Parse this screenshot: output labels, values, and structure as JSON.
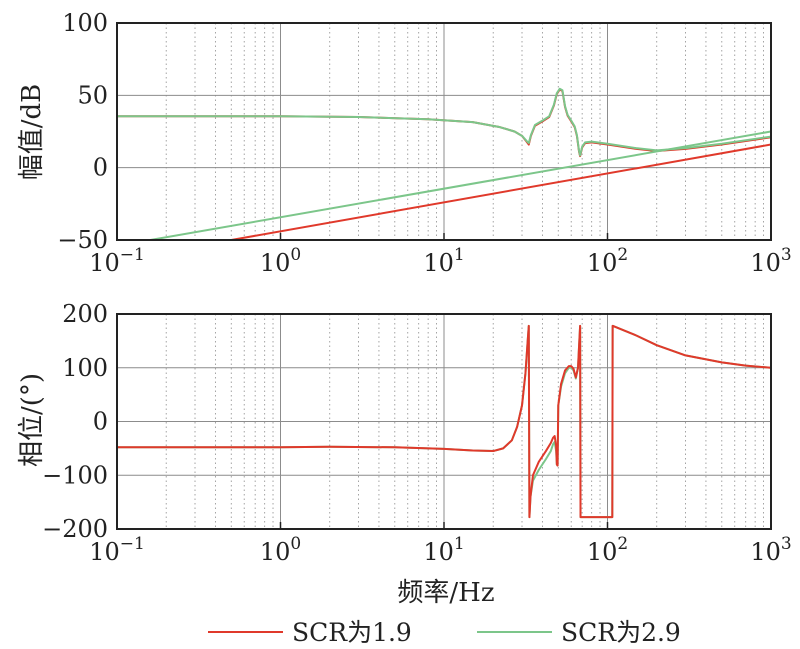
{
  "chart_data": [
    {
      "type": "line",
      "xscale": "log",
      "xlim": [
        0.1,
        1000
      ],
      "ylim": [
        -50,
        100
      ],
      "ylabel": "幅值/dB",
      "xticks": [
        {
          "value": 0.1,
          "base": "10",
          "exp": "−1"
        },
        {
          "value": 1,
          "base": "10",
          "exp": "0"
        },
        {
          "value": 10,
          "base": "10",
          "exp": "1"
        },
        {
          "value": 100,
          "base": "10",
          "exp": "2"
        },
        {
          "value": 1000,
          "base": "10",
          "exp": "3"
        }
      ],
      "yticks": [
        {
          "value": 100,
          "label": "100"
        },
        {
          "value": 50,
          "label": "50"
        },
        {
          "value": 0,
          "label": "0"
        },
        {
          "value": -50,
          "label": "−50"
        }
      ],
      "grid": true,
      "series": [
        {
          "name": "SCR为1.9",
          "color": "#e0392b",
          "points": [
            [
              0.1,
              35.5
            ],
            [
              1,
              35.5
            ],
            [
              3,
              35
            ],
            [
              8,
              33.5
            ],
            [
              15,
              31.5
            ],
            [
              22,
              28
            ],
            [
              27,
              25
            ],
            [
              30,
              22
            ],
            [
              32,
              18
            ],
            [
              33,
              16
            ],
            [
              34,
              22
            ],
            [
              36,
              29
            ],
            [
              40,
              32
            ],
            [
              44,
              35
            ],
            [
              47,
              43
            ],
            [
              49,
              51
            ],
            [
              51,
              54
            ],
            [
              53,
              53
            ],
            [
              55,
              42
            ],
            [
              57,
              36
            ],
            [
              60,
              32
            ],
            [
              63,
              28
            ],
            [
              65,
              22
            ],
            [
              67,
              11
            ],
            [
              68,
              8
            ],
            [
              70,
              14
            ],
            [
              73,
              17
            ],
            [
              80,
              17.5
            ],
            [
              100,
              16
            ],
            [
              150,
              13
            ],
            [
              200,
              11.5
            ],
            [
              300,
              13
            ],
            [
              500,
              16
            ],
            [
              1000,
              21
            ]
          ]
        },
        {
          "name": "SCR为2.9",
          "color": "#7cc68a",
          "points": [
            [
              0.1,
              35.5
            ],
            [
              1,
              35.5
            ],
            [
              3,
              35
            ],
            [
              8,
              33.5
            ],
            [
              15,
              31.5
            ],
            [
              22,
              28
            ],
            [
              27,
              25
            ],
            [
              30,
              22
            ],
            [
              32,
              18.5
            ],
            [
              33,
              17
            ],
            [
              34,
              22.5
            ],
            [
              36,
              29.5
            ],
            [
              40,
              32.5
            ],
            [
              44,
              35.5
            ],
            [
              47,
              43.5
            ],
            [
              49,
              51.5
            ],
            [
              51,
              54.5
            ],
            [
              53,
              53.5
            ],
            [
              55,
              42.5
            ],
            [
              57,
              36.5
            ],
            [
              60,
              32.5
            ],
            [
              63,
              28.5
            ],
            [
              65,
              22.5
            ],
            [
              67,
              11.5
            ],
            [
              68,
              8.5
            ],
            [
              70,
              14.5
            ],
            [
              73,
              17.5
            ],
            [
              80,
              18
            ],
            [
              100,
              16.5
            ],
            [
              150,
              13.5
            ],
            [
              200,
              12
            ],
            [
              300,
              13.5
            ],
            [
              500,
              16.5
            ],
            [
              1000,
              21.5
            ]
          ]
        },
        {
          "name": "",
          "color": "#e0392b",
          "points": [
            [
              0.5,
              -50
            ],
            [
              1000,
              16
            ]
          ]
        },
        {
          "name": "",
          "color": "#7cc68a",
          "points": [
            [
              0.16,
              -50
            ],
            [
              1000,
              25
            ]
          ]
        }
      ]
    },
    {
      "type": "line",
      "xscale": "log",
      "xlim": [
        0.1,
        1000
      ],
      "ylim": [
        -200,
        200
      ],
      "xlabel": "频率/Hz",
      "ylabel": "相位/(°)",
      "xticks": [
        {
          "value": 0.1,
          "base": "10",
          "exp": "−1"
        },
        {
          "value": 1,
          "base": "10",
          "exp": "0"
        },
        {
          "value": 10,
          "base": "10",
          "exp": "1"
        },
        {
          "value": 100,
          "base": "10",
          "exp": "2"
        },
        {
          "value": 1000,
          "base": "10",
          "exp": "3"
        }
      ],
      "yticks": [
        {
          "value": 200,
          "label": "200"
        },
        {
          "value": 100,
          "label": "100"
        },
        {
          "value": 0,
          "label": "0"
        },
        {
          "value": -100,
          "label": "−100"
        },
        {
          "value": -200,
          "label": "−200"
        }
      ],
      "grid": true,
      "series": [
        {
          "name": "SCR为2.9",
          "color": "#7cc68a",
          "points": [
            [
              0.1,
              -48
            ],
            [
              1,
              -48
            ],
            [
              2,
              -47
            ],
            [
              5,
              -48
            ],
            [
              10,
              -51
            ],
            [
              15,
              -54
            ],
            [
              20,
              -55
            ],
            [
              23,
              -50
            ],
            [
              26,
              -35
            ],
            [
              28,
              -10
            ],
            [
              30,
              30
            ],
            [
              31.5,
              90
            ],
            [
              32.5,
              150
            ],
            [
              33,
              178
            ],
            [
              33.3,
              -178
            ],
            [
              33.8,
              -140
            ],
            [
              35,
              -110
            ],
            [
              38,
              -90
            ],
            [
              42,
              -70
            ],
            [
              45,
              -55
            ],
            [
              46.5,
              -42
            ],
            [
              47.5,
              -38
            ],
            [
              48.5,
              -55
            ],
            [
              49,
              -80
            ],
            [
              49.5,
              -82
            ],
            [
              50,
              30
            ],
            [
              52,
              65
            ],
            [
              55,
              90
            ],
            [
              58,
              100
            ],
            [
              60,
              100
            ],
            [
              62,
              95
            ],
            [
              64,
              80
            ],
            [
              66,
              100
            ],
            [
              67,
              140
            ],
            [
              68,
              178
            ],
            [
              68.4,
              -178
            ],
            [
              80,
              -178
            ],
            [
              100,
              -178
            ],
            [
              107,
              -178
            ],
            [
              107.5,
              178
            ],
            [
              150,
              160
            ],
            [
              200,
              142
            ],
            [
              300,
              123
            ],
            [
              500,
              110
            ],
            [
              700,
              104
            ],
            [
              1000,
              100
            ]
          ]
        },
        {
          "name": "SCR为1.9",
          "color": "#e0392b",
          "points": [
            [
              0.1,
              -48
            ],
            [
              1,
              -48
            ],
            [
              2,
              -47
            ],
            [
              5,
              -48
            ],
            [
              10,
              -51
            ],
            [
              15,
              -54
            ],
            [
              20,
              -55
            ],
            [
              23,
              -50
            ],
            [
              26,
              -35
            ],
            [
              28,
              -10
            ],
            [
              30,
              30
            ],
            [
              31.5,
              90
            ],
            [
              32.5,
              150
            ],
            [
              33,
              178
            ],
            [
              33.3,
              -178
            ],
            [
              33.8,
              -140
            ],
            [
              35,
              -100
            ],
            [
              38,
              -75
            ],
            [
              42,
              -55
            ],
            [
              45,
              -40
            ],
            [
              46.5,
              -30
            ],
            [
              47.5,
              -27
            ],
            [
              48.5,
              -45
            ],
            [
              49,
              -80
            ],
            [
              49.5,
              -82
            ],
            [
              50,
              30
            ],
            [
              52,
              70
            ],
            [
              55,
              95
            ],
            [
              58,
              103
            ],
            [
              60,
              103
            ],
            [
              62,
              98
            ],
            [
              64,
              82
            ],
            [
              66,
              100
            ],
            [
              67,
              140
            ],
            [
              68,
              178
            ],
            [
              68.4,
              -178
            ],
            [
              80,
              -178
            ],
            [
              100,
              -178
            ],
            [
              107,
              -178
            ],
            [
              107.5,
              178
            ],
            [
              150,
              160
            ],
            [
              200,
              142
            ],
            [
              300,
              123
            ],
            [
              500,
              110
            ],
            [
              700,
              104
            ],
            [
              1000,
              100
            ]
          ]
        }
      ]
    }
  ],
  "legend": {
    "items": [
      {
        "label": "SCR为1.9",
        "color": "#e0392b"
      },
      {
        "label": "SCR为2.9",
        "color": "#7cc68a"
      }
    ]
  }
}
